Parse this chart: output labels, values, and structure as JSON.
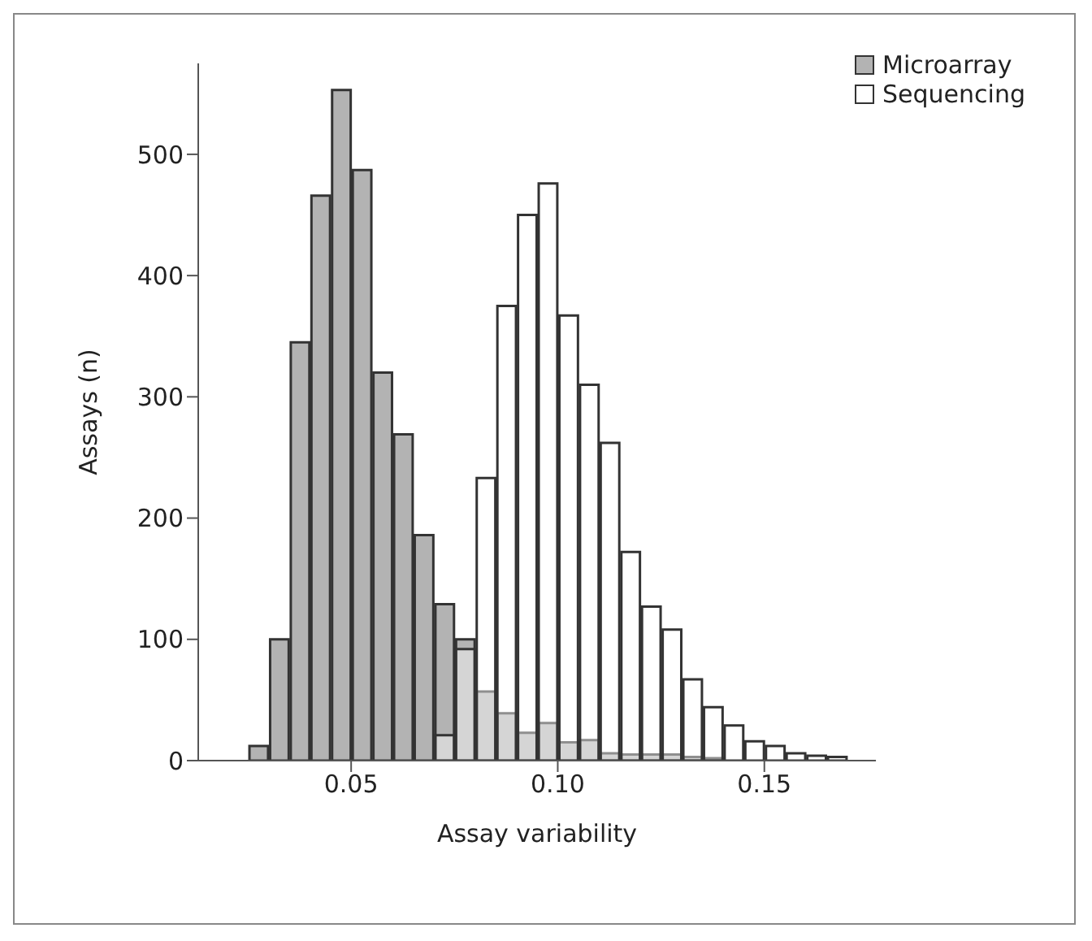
{
  "chart_data": {
    "type": "histogram",
    "xlabel": "Assay variability",
    "ylabel": "Assays (n)",
    "bins": [
      0.025,
      0.03,
      0.035,
      0.04,
      0.045,
      0.05,
      0.055,
      0.06,
      0.065,
      0.07,
      0.075,
      0.08,
      0.085,
      0.09,
      0.095,
      0.1,
      0.105,
      0.11,
      0.115,
      0.12,
      0.125,
      0.13,
      0.135,
      0.14,
      0.145,
      0.15,
      0.155,
      0.16,
      0.165,
      0.17
    ],
    "series": [
      {
        "name": "Microarray",
        "color": "#b3b3b3",
        "values": [
          12,
          100,
          345,
          466,
          553,
          487,
          320,
          269,
          186,
          129,
          100,
          57,
          39,
          23,
          31,
          15,
          17,
          6,
          5,
          5,
          5,
          3,
          2,
          0,
          0,
          0,
          0,
          0,
          0
        ]
      },
      {
        "name": "Sequencing",
        "color": "#ffffff",
        "values": [
          0,
          0,
          0,
          0,
          0,
          0,
          0,
          0,
          0,
          21,
          92,
          233,
          375,
          450,
          476,
          367,
          310,
          262,
          172,
          127,
          108,
          67,
          44,
          29,
          16,
          12,
          6,
          4,
          3
        ]
      }
    ],
    "xlim": [
      0.013,
      0.177
    ],
    "xticks": [
      {
        "value": 0.05,
        "label": "0.05"
      },
      {
        "value": 0.1,
        "label": "0.10"
      },
      {
        "value": 0.15,
        "label": "0.15"
      }
    ],
    "ylim": [
      0,
      575
    ],
    "yticks": [
      0,
      100,
      200,
      300,
      400,
      500
    ],
    "grid": false,
    "legend": "top right"
  }
}
